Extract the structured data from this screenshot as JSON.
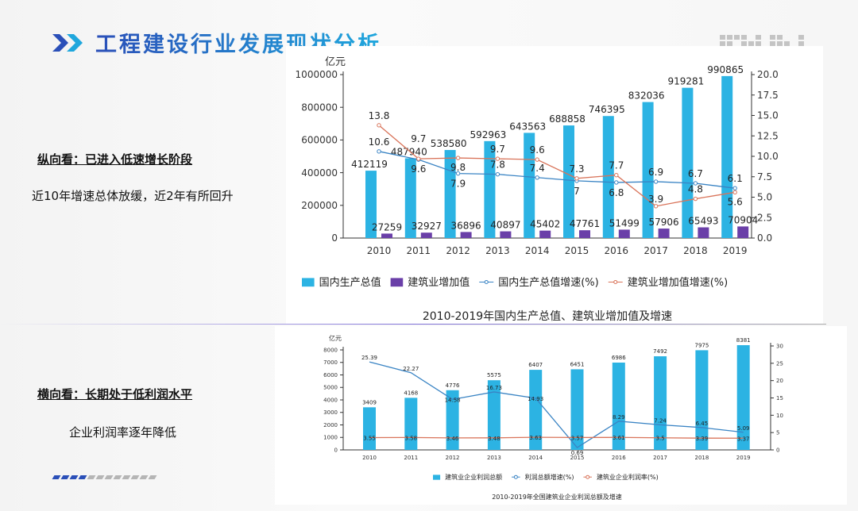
{
  "header": {
    "title": "工程建设行业发展现状分析",
    "arrow_icon": "double-chevron-right-icon"
  },
  "left": {
    "section1_heading": "纵向看：已进入低速增长阶段",
    "section1_text": "近10年增速总体放缓，近2年有所回升",
    "section2_heading": "横向看：长期处于低利润水平",
    "section2_text": "企业利润率逐年降低"
  },
  "colors": {
    "title_start": "#2a4fb8",
    "title_end": "#1fa7dd",
    "bar_blue": "#2cb3e3",
    "bar_purple": "#6a3fa8",
    "line_blue": "#3a84c4",
    "line_red": "#d9745a"
  },
  "chart_data": [
    {
      "type": "bar",
      "title": "2010-2019年国内生产总值、建筑业增加值及增速",
      "unit": "亿元",
      "categories": [
        "2010",
        "2011",
        "2012",
        "2013",
        "2014",
        "2015",
        "2016",
        "2017",
        "2018",
        "2019"
      ],
      "ylim": [
        0,
        1000000
      ],
      "y2lim": [
        0,
        20
      ],
      "yticks": [
        "0",
        "200000",
        "400000",
        "600000",
        "800000",
        "1000000"
      ],
      "y2ticks": [
        "0.0",
        "2.5",
        "5.0",
        "7.5",
        "10.0",
        "12.5",
        "15.0",
        "17.5",
        "20.0"
      ],
      "series": [
        {
          "name": "国内生产总值",
          "kind": "bar",
          "values": [
            412119,
            487940,
            538580,
            592963,
            643563,
            688858,
            746395,
            832036,
            919281,
            990865
          ]
        },
        {
          "name": "建筑业增加值",
          "kind": "bar",
          "values": [
            27259,
            32927,
            36896,
            40897,
            45402,
            47761,
            51499,
            57906,
            65493,
            70904
          ]
        },
        {
          "name": "国内生产总值增速(%)",
          "kind": "line",
          "axis": "right",
          "values": [
            10.6,
            9.6,
            7.9,
            7.8,
            7.4,
            7,
            6.8,
            6.9,
            6.7,
            6.1
          ]
        },
        {
          "name": "建筑业增加值增速(%)",
          "kind": "line",
          "axis": "right",
          "values": [
            13.8,
            9.7,
            9.8,
            9.7,
            9.6,
            7.3,
            7.7,
            3.9,
            4.8,
            5.6
          ]
        }
      ]
    },
    {
      "type": "bar",
      "title": "2010-2019年全国建筑业企业利润总额及增速",
      "unit": "亿元",
      "categories": [
        "2010",
        "2011",
        "2012",
        "2013",
        "2014",
        "2015",
        "2016",
        "2017",
        "2018",
        "2019"
      ],
      "ylim": [
        0,
        8000
      ],
      "y2lim": [
        0,
        30
      ],
      "yticks": [
        "0",
        "1000",
        "2000",
        "3000",
        "4000",
        "5000",
        "6000",
        "7000",
        "8000"
      ],
      "y2ticks": [
        "0",
        "5",
        "10",
        "15",
        "20",
        "25",
        "30"
      ],
      "series": [
        {
          "name": "建筑业企业利润总额",
          "kind": "bar",
          "values": [
            3409,
            4168,
            4776,
            5575,
            6407,
            6451,
            6986,
            7492,
            7975,
            8381
          ]
        },
        {
          "name": "利润总额增速(%)",
          "kind": "line",
          "axis": "right",
          "values": [
            25.39,
            22.27,
            14.58,
            16.73,
            14.93,
            0.69,
            8.29,
            7.24,
            6.45,
            5.09
          ]
        },
        {
          "name": "建筑业企业利润率(%)",
          "kind": "line",
          "axis": "right",
          "values": [
            3.55,
            3.58,
            3.46,
            3.48,
            3.63,
            3.57,
            3.61,
            3.5,
            3.39,
            3.37
          ]
        }
      ]
    }
  ]
}
